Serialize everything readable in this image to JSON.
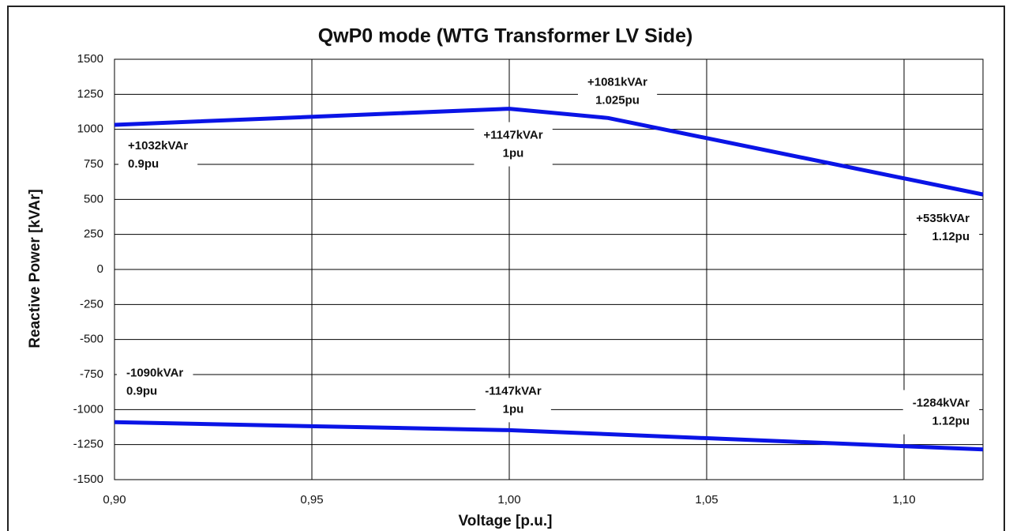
{
  "chart_data": {
    "type": "line",
    "title": "QwP0 mode  (WTG Transformer LV Side)",
    "x_label": "Voltage [p.u.]",
    "y_label": "Reactive Power [kVAr]",
    "xlim": [
      0.9,
      1.12
    ],
    "xticks": [
      {
        "value": 0.9,
        "label": "0,90"
      },
      {
        "value": 0.95,
        "label": "0,95"
      },
      {
        "value": 1.0,
        "label": "1,00"
      },
      {
        "value": 1.05,
        "label": "1,05"
      },
      {
        "value": 1.1,
        "label": "1,10"
      }
    ],
    "ylim": [
      -1500,
      1500
    ],
    "yticks": [
      -1500,
      -1250,
      -1000,
      -750,
      -500,
      -250,
      0,
      250,
      500,
      750,
      1000,
      1250,
      1500
    ],
    "grid": true,
    "series": [
      {
        "color": "#0a14e6",
        "x": [
          0.9,
          1.0,
          1.025,
          1.12
        ],
        "values": [
          1032,
          1147,
          1081,
          535
        ],
        "value_labels": [
          "+1032kVAr",
          "+1147kVAr",
          "+1081kVAr",
          "+535kVAr"
        ],
        "x_labels": [
          "0.9pu",
          "1pu",
          "1.025pu",
          "1.12pu"
        ]
      },
      {
        "color": "#0a14e6",
        "x": [
          0.9,
          1.0,
          1.12
        ],
        "values": [
          -1090,
          -1147,
          -1284
        ],
        "value_labels": [
          "-1090kVAr",
          "-1147kVAr",
          "-1284kVAr"
        ],
        "x_labels": [
          "0.9pu",
          "1pu",
          "1.12pu"
        ]
      }
    ]
  }
}
